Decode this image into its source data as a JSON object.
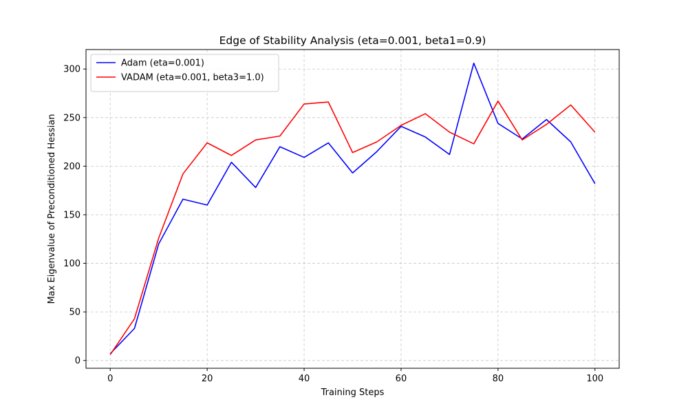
{
  "chart_data": {
    "type": "line",
    "title": "Edge of Stability Analysis (eta=0.001, beta1=0.9)",
    "xlabel": "Training Steps",
    "ylabel": "Max Eigenvalue of Preconditioned Hessian",
    "xlim": [
      -5,
      105
    ],
    "ylim": [
      -8,
      320
    ],
    "xticks": [
      0,
      20,
      40,
      60,
      80,
      100
    ],
    "yticks": [
      0,
      50,
      100,
      150,
      200,
      250,
      300
    ],
    "grid": true,
    "legend_position": "upper-left",
    "x": [
      0,
      5,
      10,
      15,
      20,
      25,
      30,
      35,
      40,
      45,
      50,
      55,
      60,
      65,
      70,
      75,
      80,
      85,
      90,
      95,
      100
    ],
    "series": [
      {
        "name": "Adam (eta=0.001)",
        "color": "#0000ff",
        "values": [
          7,
          33,
          120,
          166,
          160,
          204,
          178,
          220,
          209,
          224,
          193,
          215,
          241,
          230,
          212,
          306,
          244,
          228,
          248,
          225,
          182
        ]
      },
      {
        "name": "VADAM (eta=0.001, beta3=1.0)",
        "color": "#ff0000",
        "values": [
          6,
          43,
          126,
          192,
          224,
          211,
          227,
          231,
          264,
          266,
          214,
          225,
          242,
          254,
          235,
          223,
          267,
          227,
          243,
          263,
          235
        ]
      }
    ]
  }
}
